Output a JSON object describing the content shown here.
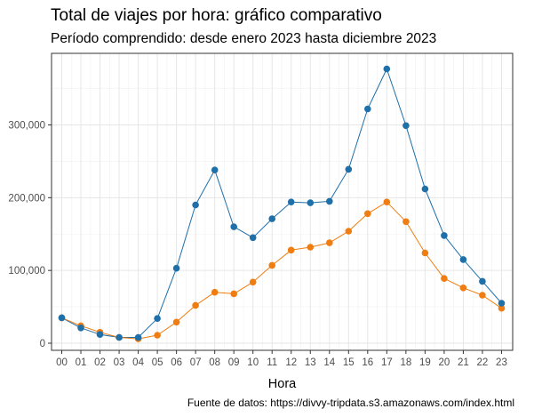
{
  "title": "Total de viajes por hora: gráfico comparativo",
  "subtitle": "Período comprendido: desde enero 2023 hasta diciembre 2023",
  "caption": "Fuente de datos: https://divvy-tripdata.s3.amazonaws.com/index.html",
  "chart_data": {
    "type": "line",
    "title": "Total de viajes por hora: gráfico comparativo",
    "subtitle": "Período comprendido: desde enero 2023 hasta diciembre 2023",
    "xlabel": "Hora",
    "ylabel": "",
    "categories": [
      "00",
      "01",
      "02",
      "03",
      "04",
      "05",
      "06",
      "07",
      "08",
      "09",
      "10",
      "11",
      "12",
      "13",
      "14",
      "15",
      "16",
      "17",
      "18",
      "19",
      "20",
      "21",
      "22",
      "23"
    ],
    "ylim": [
      0,
      380000
    ],
    "yticks": [
      0,
      100000,
      200000,
      300000
    ],
    "ytick_labels": [
      "0",
      "100,000",
      "200,000",
      "300,000"
    ],
    "grid": true,
    "legend": "none",
    "series": [
      {
        "color": "#1f6fa8",
        "values": [
          35000,
          21000,
          12000,
          8000,
          8000,
          34000,
          103000,
          190000,
          238000,
          160000,
          145000,
          171000,
          194000,
          193000,
          195000,
          239000,
          322000,
          377000,
          299000,
          212000,
          148000,
          115000,
          85000,
          55000
        ]
      },
      {
        "color": "#f07d12",
        "values": [
          35000,
          24000,
          15000,
          8000,
          6000,
          11000,
          29000,
          52000,
          70000,
          68000,
          84000,
          107000,
          128000,
          132000,
          138000,
          154000,
          178000,
          194000,
          167000,
          124000,
          89000,
          76000,
          66000,
          48000
        ]
      }
    ]
  }
}
